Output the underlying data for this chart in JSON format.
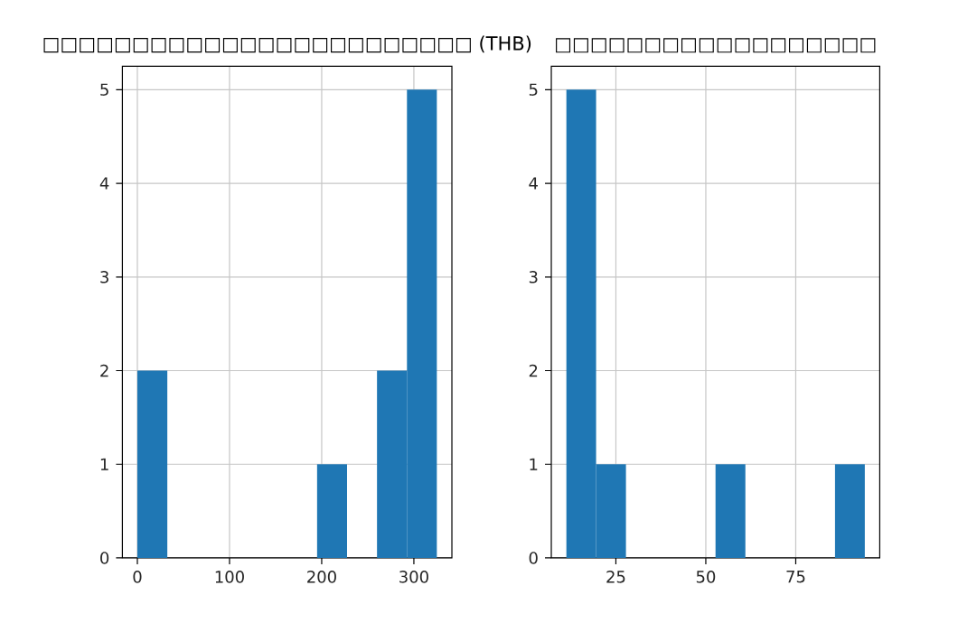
{
  "chart_data": [
    {
      "type": "histogram",
      "title": "□□□□□□□□□□□□□□□□□□□□□□□□ (THB)",
      "bins": [
        0,
        32.5,
        65,
        97.5,
        130,
        162.5,
        195,
        227.5,
        260,
        292.5,
        325
      ],
      "values": [
        2,
        0,
        0,
        0,
        0,
        0,
        1,
        0,
        2,
        5
      ],
      "color": "#1f77b4",
      "xlim": [
        -16.25,
        341.25
      ],
      "ylim": [
        0,
        5.25
      ],
      "xticks": [
        0,
        100,
        200,
        300
      ],
      "yticks": [
        0,
        1,
        2,
        3,
        4,
        5
      ],
      "grid": true
    },
    {
      "type": "histogram",
      "title": "□□□□□□□□□□□□□□□□□□",
      "bins": [
        11.2,
        19.5,
        27.8,
        36.1,
        44.4,
        52.7,
        61,
        69.3,
        77.6,
        85.9,
        94.2
      ],
      "values": [
        5,
        1,
        0,
        0,
        0,
        1,
        0,
        0,
        0,
        1
      ],
      "color": "#1f77b4",
      "xlim": [
        7.05,
        98.35
      ],
      "ylim": [
        0,
        5.25
      ],
      "xticks": [
        25,
        50,
        75
      ],
      "yticks": [
        0,
        1,
        2,
        3,
        4,
        5
      ],
      "grid": true
    }
  ]
}
